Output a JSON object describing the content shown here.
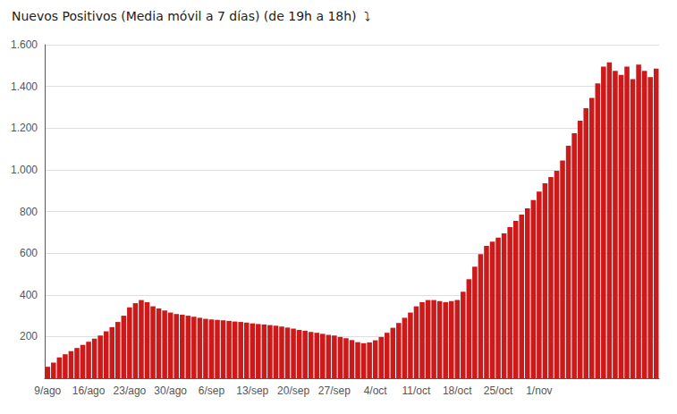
{
  "chart_data": {
    "type": "bar",
    "title": "Nuevos Positivos (Media móvil a 7 días) (de 19h a 18h)  ⤵",
    "color": "#cc1a1a",
    "grid": true,
    "ylim": [
      0,
      1600
    ],
    "yticks": [
      200,
      400,
      600,
      800,
      {
        "value": 1000,
        "label": "1.000"
      },
      {
        "value": 1200,
        "label": "1.200"
      },
      {
        "value": 1400,
        "label": "1.400"
      },
      {
        "value": 1600,
        "label": "1.600"
      }
    ],
    "categories": [
      "9/ago",
      null,
      null,
      null,
      null,
      null,
      null,
      "16/ago",
      null,
      null,
      null,
      null,
      null,
      null,
      "23/ago",
      null,
      null,
      null,
      null,
      null,
      null,
      "30/ago",
      null,
      null,
      null,
      null,
      null,
      null,
      "6/sep",
      null,
      null,
      null,
      null,
      null,
      null,
      "13/sep",
      null,
      null,
      null,
      null,
      null,
      null,
      "20/sep",
      null,
      null,
      null,
      null,
      null,
      null,
      "27/sep",
      null,
      null,
      null,
      null,
      null,
      null,
      "4/oct",
      null,
      null,
      null,
      null,
      null,
      null,
      "11/oct",
      null,
      null,
      null,
      null,
      null,
      null,
      "18/oct",
      null,
      null,
      null,
      null,
      null,
      null,
      "25/oct",
      null,
      null,
      null,
      null,
      null,
      null,
      "1/nov",
      null,
      null,
      null,
      null,
      null,
      null,
      null,
      null,
      null,
      null,
      null,
      null,
      null,
      null,
      null,
      null,
      null,
      null,
      null,
      null
    ],
    "values": [
      55,
      75,
      100,
      115,
      130,
      145,
      160,
      175,
      190,
      205,
      225,
      245,
      270,
      300,
      340,
      360,
      375,
      365,
      345,
      335,
      325,
      315,
      308,
      305,
      300,
      295,
      290,
      285,
      282,
      280,
      278,
      275,
      272,
      270,
      267,
      263,
      260,
      258,
      255,
      252,
      248,
      243,
      238,
      232,
      228,
      222,
      218,
      213,
      208,
      205,
      198,
      192,
      183,
      173,
      168,
      172,
      182,
      198,
      218,
      242,
      265,
      290,
      315,
      345,
      365,
      375,
      375,
      370,
      365,
      370,
      375,
      415,
      475,
      535,
      595,
      635,
      655,
      675,
      695,
      725,
      755,
      785,
      815,
      855,
      895,
      935,
      965,
      995,
      1045,
      1115,
      1175,
      1235,
      1295,
      1345,
      1415,
      1495,
      1515,
      1475,
      1455,
      1495,
      1435,
      1505,
      1475,
      1445,
      1485
    ]
  }
}
